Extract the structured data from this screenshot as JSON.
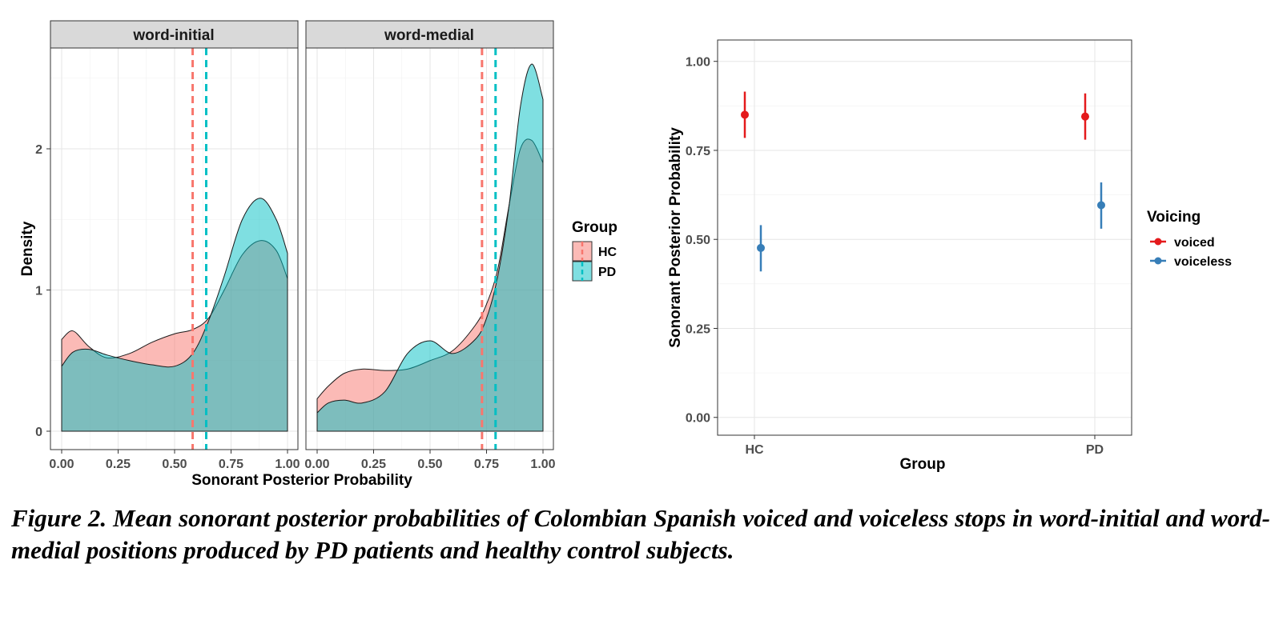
{
  "chart_data": [
    {
      "type": "area",
      "panels": [
        "word-initial",
        "word-medial"
      ],
      "xlabel": "Sonorant Posterior Probability",
      "ylabel": "Density",
      "xlim": [
        0,
        1
      ],
      "ylim": [
        0,
        2.6
      ],
      "x_ticks": [
        "0.00",
        "0.25",
        "0.50",
        "0.75",
        "1.00"
      ],
      "y_ticks": [
        "0",
        "1",
        "2"
      ],
      "legend": {
        "title": "Group",
        "entries": [
          "HC",
          "PD"
        ],
        "position": "right"
      },
      "colors": {
        "HC": "#F8766D",
        "PD": "#00BFC4"
      },
      "series": [
        {
          "panel": "word-initial",
          "name": "HC",
          "x": [
            0.0,
            0.05,
            0.12,
            0.2,
            0.3,
            0.4,
            0.5,
            0.58,
            0.65,
            0.72,
            0.8,
            0.88,
            0.95,
            1.0
          ],
          "y": [
            0.65,
            0.71,
            0.6,
            0.52,
            0.55,
            0.63,
            0.69,
            0.72,
            0.8,
            1.0,
            1.25,
            1.35,
            1.28,
            1.08
          ],
          "mean": 0.58
        },
        {
          "panel": "word-initial",
          "name": "PD",
          "x": [
            0.0,
            0.05,
            0.12,
            0.2,
            0.3,
            0.4,
            0.5,
            0.58,
            0.65,
            0.72,
            0.8,
            0.88,
            0.95,
            1.0
          ],
          "y": [
            0.46,
            0.56,
            0.58,
            0.54,
            0.5,
            0.47,
            0.46,
            0.55,
            0.78,
            1.1,
            1.5,
            1.65,
            1.5,
            1.26
          ],
          "mean": 0.64
        },
        {
          "panel": "word-medial",
          "name": "HC",
          "x": [
            0.0,
            0.05,
            0.12,
            0.2,
            0.3,
            0.4,
            0.5,
            0.6,
            0.7,
            0.75,
            0.8,
            0.85,
            0.9,
            0.95,
            1.0
          ],
          "y": [
            0.23,
            0.32,
            0.41,
            0.44,
            0.43,
            0.44,
            0.5,
            0.57,
            0.75,
            0.9,
            1.15,
            1.6,
            2.0,
            2.06,
            1.9
          ],
          "mean": 0.73
        },
        {
          "panel": "word-medial",
          "name": "PD",
          "x": [
            0.0,
            0.05,
            0.12,
            0.2,
            0.3,
            0.4,
            0.5,
            0.6,
            0.7,
            0.75,
            0.8,
            0.85,
            0.9,
            0.95,
            1.0
          ],
          "y": [
            0.13,
            0.2,
            0.22,
            0.2,
            0.28,
            0.55,
            0.64,
            0.55,
            0.65,
            0.8,
            1.1,
            1.6,
            2.3,
            2.6,
            2.35
          ],
          "mean": 0.79
        }
      ]
    },
    {
      "type": "scatter",
      "xlabel": "Group",
      "ylabel": "Sonorant Posterior Probability",
      "categories": [
        "HC",
        "PD"
      ],
      "ylim": [
        -0.05,
        1.06
      ],
      "y_ticks": [
        "0.00",
        "0.25",
        "0.50",
        "0.75",
        "1.00"
      ],
      "legend": {
        "title": "Voicing",
        "entries": [
          "voiced",
          "voiceless"
        ],
        "position": "right"
      },
      "colors": {
        "voiced": "#E41A1C",
        "voiceless": "#377EB8"
      },
      "series": [
        {
          "name": "voiced",
          "values": [
            0.85,
            0.845
          ],
          "lower": [
            0.785,
            0.78
          ],
          "upper": [
            0.915,
            0.91
          ]
        },
        {
          "name": "voiceless",
          "values": [
            0.476,
            0.596
          ],
          "lower": [
            0.41,
            0.53
          ],
          "upper": [
            0.54,
            0.66
          ]
        }
      ]
    }
  ],
  "caption": "Figure 2. Mean sonorant posterior probabilities of Colombian Spanish voiced and voiceless stops in word-initial and word-medial positions produced by PD patients and healthy control subjects."
}
